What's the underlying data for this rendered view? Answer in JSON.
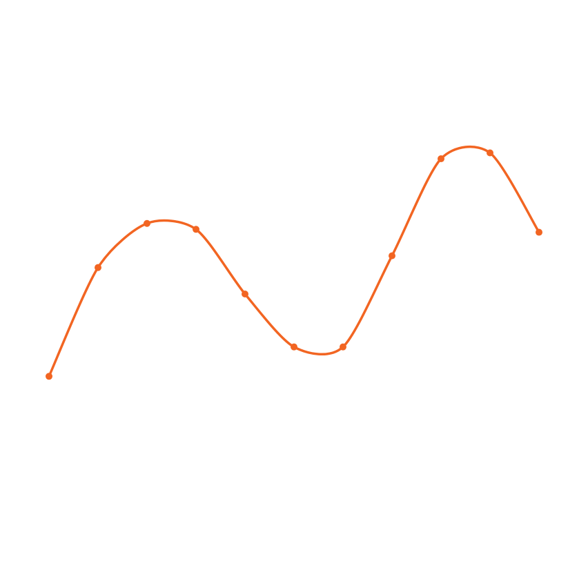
{
  "chart_data": {
    "type": "line",
    "title": "",
    "xlabel": "",
    "ylabel": "",
    "grid": false,
    "axes_visible": false,
    "smooth": true,
    "x": [
      1,
      2,
      3,
      4,
      5,
      6,
      7,
      8,
      9,
      10,
      11
    ],
    "series": [
      {
        "color": "#f26522",
        "values": [
          0.22,
          0.59,
          0.74,
          0.72,
          0.5,
          0.32,
          0.32,
          0.63,
          0.96,
          0.98,
          0.71
        ]
      }
    ],
    "xlim": [
      0,
      12
    ],
    "ylim": [
      -0.5,
      1.5
    ]
  }
}
